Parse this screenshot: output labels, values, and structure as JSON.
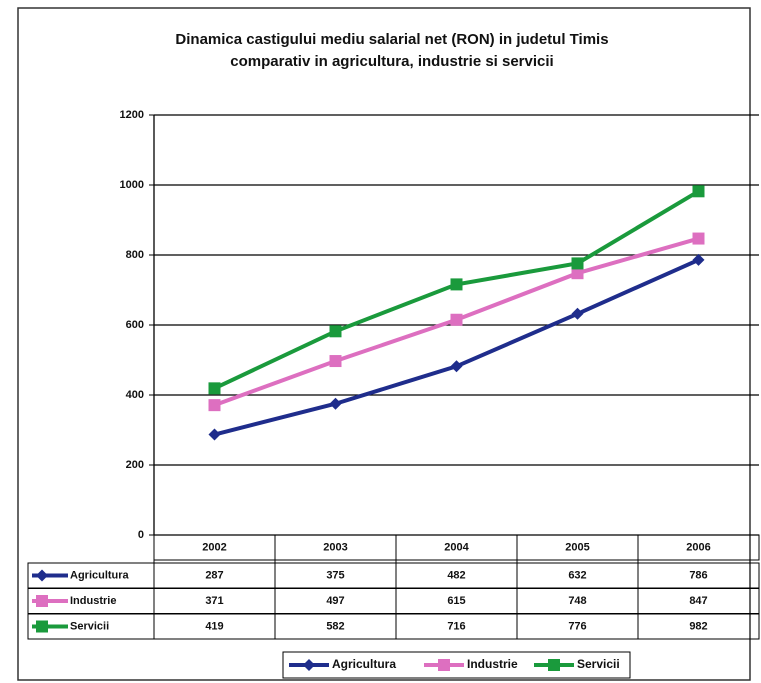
{
  "chart_data": {
    "type": "line",
    "title": [
      "Dinamica castigului mediu salarial net (RON) in judetul Timis",
      "comparativ in agricultura, industrie si servicii"
    ],
    "categories": [
      "2002",
      "2003",
      "2004",
      "2005",
      "2006"
    ],
    "series": [
      {
        "name": "Agricultura",
        "color": "#1f2d8c",
        "marker": "diamond",
        "values": [
          287,
          375,
          482,
          632,
          786
        ]
      },
      {
        "name": "Industrie",
        "color": "#dd6fc0",
        "marker": "square",
        "values": [
          371,
          497,
          615,
          748,
          847
        ]
      },
      {
        "name": "Servicii",
        "color": "#1a9a3c",
        "marker": "square",
        "values": [
          419,
          582,
          716,
          776,
          982
        ]
      }
    ],
    "ylim": [
      0,
      1200
    ],
    "yticks": [
      0,
      200,
      400,
      600,
      800,
      1000,
      1200
    ],
    "grid": true,
    "legend": "bottom"
  }
}
